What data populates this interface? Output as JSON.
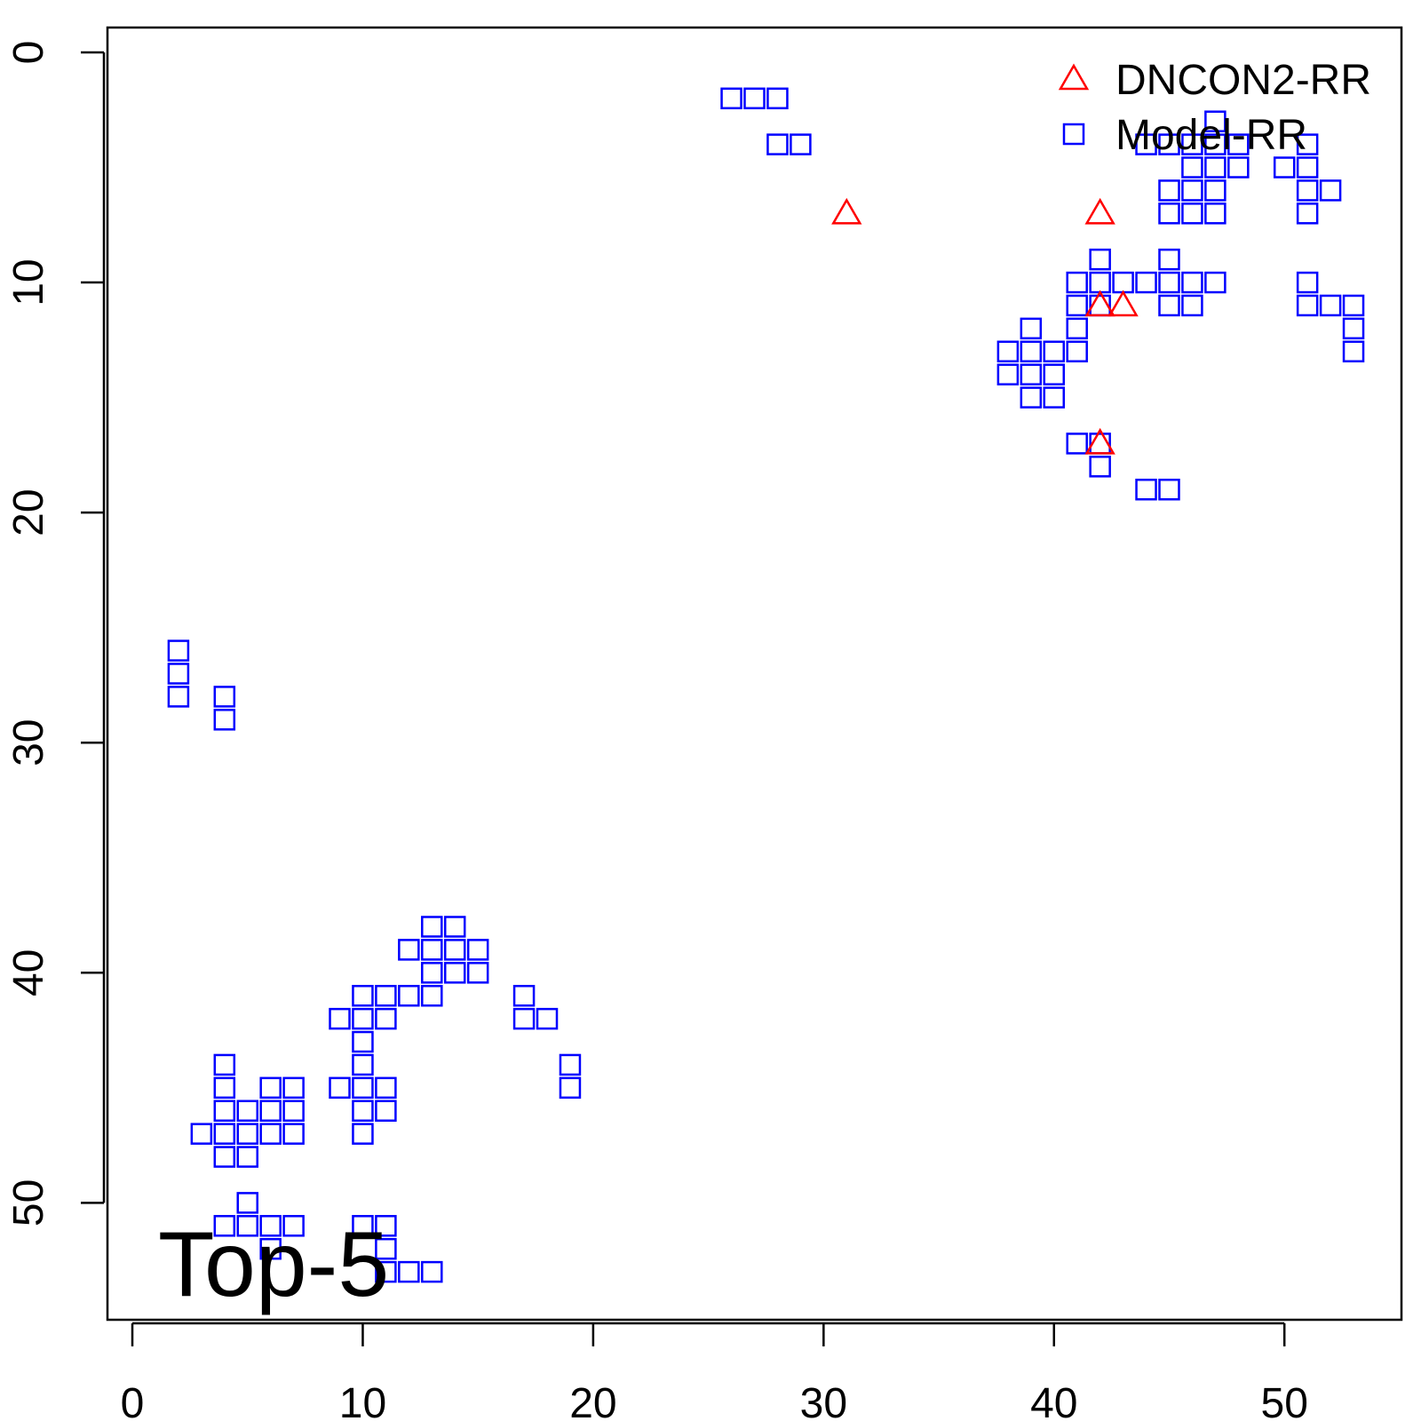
{
  "chart_data": {
    "type": "scatter",
    "title": "",
    "xlabel": "",
    "ylabel": "",
    "xlim": [
      -1.08,
      55.08
    ],
    "ylim": [
      -1.08,
      55.08
    ],
    "y_reversed": true,
    "grid": false,
    "x_ticks": [
      "0",
      "10",
      "20",
      "30",
      "40",
      "50"
    ],
    "y_ticks": [
      "0",
      "10",
      "20",
      "30",
      "40",
      "50"
    ],
    "annotation": "Top-5",
    "legend_position": "top-right",
    "series": [
      {
        "name": "DNCON2-RR",
        "marker": "triangle",
        "color": "#ff0000",
        "points": [
          [
            31,
            7
          ],
          [
            42,
            7
          ],
          [
            42,
            11
          ],
          [
            43,
            11
          ],
          [
            42,
            17
          ]
        ]
      },
      {
        "name": "Model-RR",
        "marker": "square",
        "color": "#0000ff",
        "points": [
          [
            26,
            2
          ],
          [
            27,
            2
          ],
          [
            28,
            2
          ],
          [
            28,
            4
          ],
          [
            29,
            4
          ],
          [
            47,
            3
          ],
          [
            44,
            4
          ],
          [
            45,
            4
          ],
          [
            46,
            4
          ],
          [
            47,
            4
          ],
          [
            48,
            4
          ],
          [
            51,
            4
          ],
          [
            46,
            5
          ],
          [
            47,
            5
          ],
          [
            48,
            5
          ],
          [
            50,
            5
          ],
          [
            51,
            5
          ],
          [
            45,
            6
          ],
          [
            46,
            6
          ],
          [
            47,
            6
          ],
          [
            51,
            6
          ],
          [
            52,
            6
          ],
          [
            45,
            7
          ],
          [
            46,
            7
          ],
          [
            47,
            7
          ],
          [
            51,
            7
          ],
          [
            42,
            9
          ],
          [
            45,
            9
          ],
          [
            41,
            10
          ],
          [
            42,
            10
          ],
          [
            43,
            10
          ],
          [
            44,
            10
          ],
          [
            45,
            10
          ],
          [
            46,
            10
          ],
          [
            47,
            10
          ],
          [
            51,
            10
          ],
          [
            41,
            11
          ],
          [
            42,
            11
          ],
          [
            45,
            11
          ],
          [
            46,
            11
          ],
          [
            51,
            11
          ],
          [
            52,
            11
          ],
          [
            53,
            11
          ],
          [
            39,
            12
          ],
          [
            41,
            12
          ],
          [
            53,
            12
          ],
          [
            38,
            13
          ],
          [
            39,
            13
          ],
          [
            40,
            13
          ],
          [
            41,
            13
          ],
          [
            53,
            13
          ],
          [
            38,
            14
          ],
          [
            39,
            14
          ],
          [
            40,
            14
          ],
          [
            39,
            15
          ],
          [
            40,
            15
          ],
          [
            41,
            17
          ],
          [
            42,
            17
          ],
          [
            42,
            18
          ],
          [
            44,
            19
          ],
          [
            45,
            19
          ],
          [
            2,
            26
          ],
          [
            2,
            27
          ],
          [
            2,
            28
          ],
          [
            4,
            28
          ],
          [
            4,
            29
          ],
          [
            13,
            38
          ],
          [
            14,
            38
          ],
          [
            12,
            39
          ],
          [
            13,
            39
          ],
          [
            14,
            39
          ],
          [
            15,
            39
          ],
          [
            13,
            40
          ],
          [
            14,
            40
          ],
          [
            15,
            40
          ],
          [
            10,
            41
          ],
          [
            11,
            41
          ],
          [
            12,
            41
          ],
          [
            13,
            41
          ],
          [
            17,
            41
          ],
          [
            9,
            42
          ],
          [
            10,
            42
          ],
          [
            11,
            42
          ],
          [
            17,
            42
          ],
          [
            18,
            42
          ],
          [
            10,
            43
          ],
          [
            4,
            44
          ],
          [
            10,
            44
          ],
          [
            19,
            44
          ],
          [
            4,
            45
          ],
          [
            6,
            45
          ],
          [
            7,
            45
          ],
          [
            9,
            45
          ],
          [
            10,
            45
          ],
          [
            11,
            45
          ],
          [
            19,
            45
          ],
          [
            4,
            46
          ],
          [
            5,
            46
          ],
          [
            6,
            46
          ],
          [
            7,
            46
          ],
          [
            10,
            46
          ],
          [
            11,
            46
          ],
          [
            3,
            47
          ],
          [
            4,
            47
          ],
          [
            5,
            47
          ],
          [
            6,
            47
          ],
          [
            7,
            47
          ],
          [
            10,
            47
          ],
          [
            4,
            48
          ],
          [
            5,
            48
          ],
          [
            5,
            50
          ],
          [
            4,
            51
          ],
          [
            5,
            51
          ],
          [
            6,
            51
          ],
          [
            7,
            51
          ],
          [
            10,
            51
          ],
          [
            11,
            51
          ],
          [
            6,
            52
          ],
          [
            11,
            52
          ],
          [
            11,
            53
          ],
          [
            12,
            53
          ],
          [
            13,
            53
          ]
        ]
      }
    ]
  }
}
